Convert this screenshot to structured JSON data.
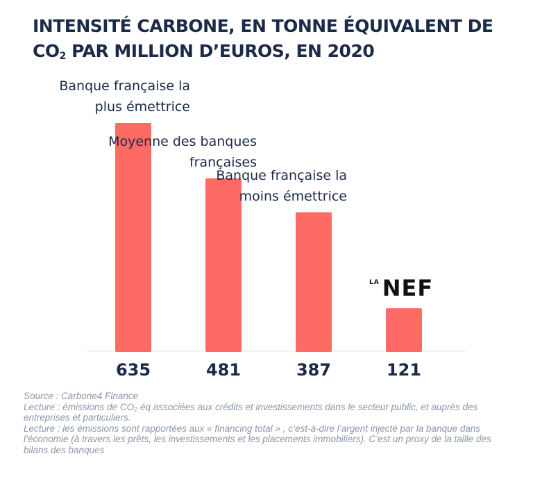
{
  "title_prefix": "INTENSITÉ CARBONE, EN TONNE ÉQUIVALENT DE CO",
  "title_sub": "2",
  "title_suffix": " PAR MILLION D’EUROS,  EN 2020",
  "colors": {
    "bar": "#fe6b64",
    "text": "#1b2a46",
    "note": "#8a96a8"
  },
  "logo": {
    "small": "LA",
    "large": "NEF"
  },
  "chart_data": {
    "type": "bar",
    "title": "INTENSITÉ CARBONE, EN TONNE ÉQUIVALENT DE CO2 PAR MILLION D’EUROS,  EN 2020",
    "categories": [
      [
        "Banque française la",
        "plus émettrice"
      ],
      [
        "Moyenne des banques",
        "françaises"
      ],
      [
        "Banque française la",
        "moins émettrice"
      ],
      [
        "LA NEF"
      ]
    ],
    "values": [
      635,
      481,
      387,
      121
    ],
    "value_labels": [
      "635",
      "481",
      "387",
      "121"
    ],
    "xlabel": "",
    "ylabel": "",
    "ylim": [
      0,
      635
    ],
    "grid": false,
    "legend": "none"
  },
  "notes": [
    "Source : Carbone4 Finance",
    "Lecture : émissions de CO₂ éq associées aux crédits et investissements dans le secteur public, et auprès des entreprises et particuliers.",
    "Lecture : les émissions sont rapportées aux « financing total » , c’est-à-dire l’argent injecté par la banque dans l’économie (à travers les prêts, les investissements et les placements immobiliers). C’est un proxy de la taille des bilans des banques"
  ]
}
